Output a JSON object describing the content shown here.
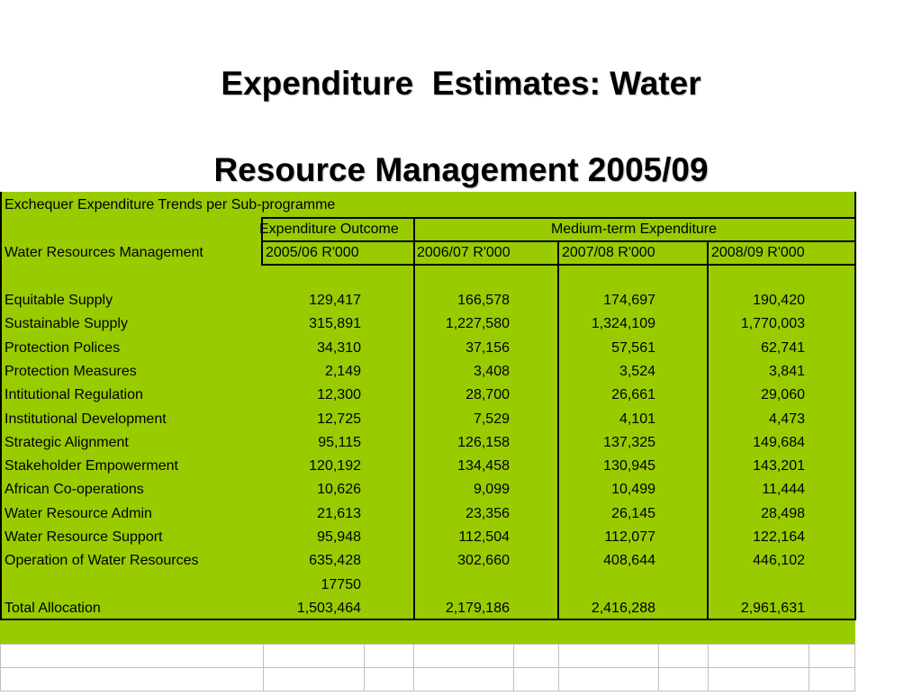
{
  "title": {
    "line1": "Expenditure  Estimates: Water",
    "line2": "Resource Management 2005/09"
  },
  "table": {
    "caption": "Exchequer Expenditure Trends per Sub-programme",
    "group_headers": {
      "outcome": "Expenditure Outcome",
      "medium": "Medium-term Expenditure"
    },
    "row_header": "Water Resources Management",
    "columns": [
      "2005/06  R'000",
      "2006/07  R'000",
      "2007/08 R'000",
      "2008/09 R'000"
    ],
    "rows": [
      {
        "label": "Equitable Supply",
        "values": [
          "129,417",
          "166,578",
          "174,697",
          "190,420"
        ]
      },
      {
        "label": "Sustainable Supply",
        "values": [
          "315,891",
          "1,227,580",
          "1,324,109",
          "1,770,003"
        ]
      },
      {
        "label": "Protection Polices",
        "values": [
          "34,310",
          "37,156",
          "57,561",
          "62,741"
        ]
      },
      {
        "label": "Protection Measures",
        "values": [
          "2,149",
          "3,408",
          "3,524",
          "3,841"
        ]
      },
      {
        "label": "Intitutional Regulation",
        "values": [
          "12,300",
          "28,700",
          "26,661",
          "29,060"
        ]
      },
      {
        "label": "Institutional Development",
        "values": [
          "12,725",
          "7,529",
          "4,101",
          "4,473"
        ]
      },
      {
        "label": "Strategic Alignment",
        "values": [
          "95,115",
          "126,158",
          "137,325",
          "149,684"
        ]
      },
      {
        "label": "Stakeholder Empowerment",
        "values": [
          "120,192",
          "134,458",
          "130,945",
          "143,201"
        ]
      },
      {
        "label": "African Co-operations",
        "values": [
          "10,626",
          "9,099",
          "10,499",
          "11,444"
        ]
      },
      {
        "label": "Water Resource Admin",
        "values": [
          "21,613",
          "23,356",
          "26,145",
          "28,498"
        ]
      },
      {
        "label": "Water Resource Support",
        "values": [
          "95,948",
          "112,504",
          "112,077",
          "122,164"
        ]
      },
      {
        "label": "Operation of Water Resources",
        "values": [
          "635,428",
          "302,660",
          "408,644",
          "446,102"
        ]
      },
      {
        "label": "",
        "values": [
          "17750",
          "",
          "",
          ""
        ]
      },
      {
        "label": "Total Allocation",
        "values": [
          "1,503,464",
          "2,179,186",
          "2,416,288",
          "2,961,631"
        ]
      }
    ]
  },
  "colors": {
    "sheet_background": "#99cc00"
  }
}
